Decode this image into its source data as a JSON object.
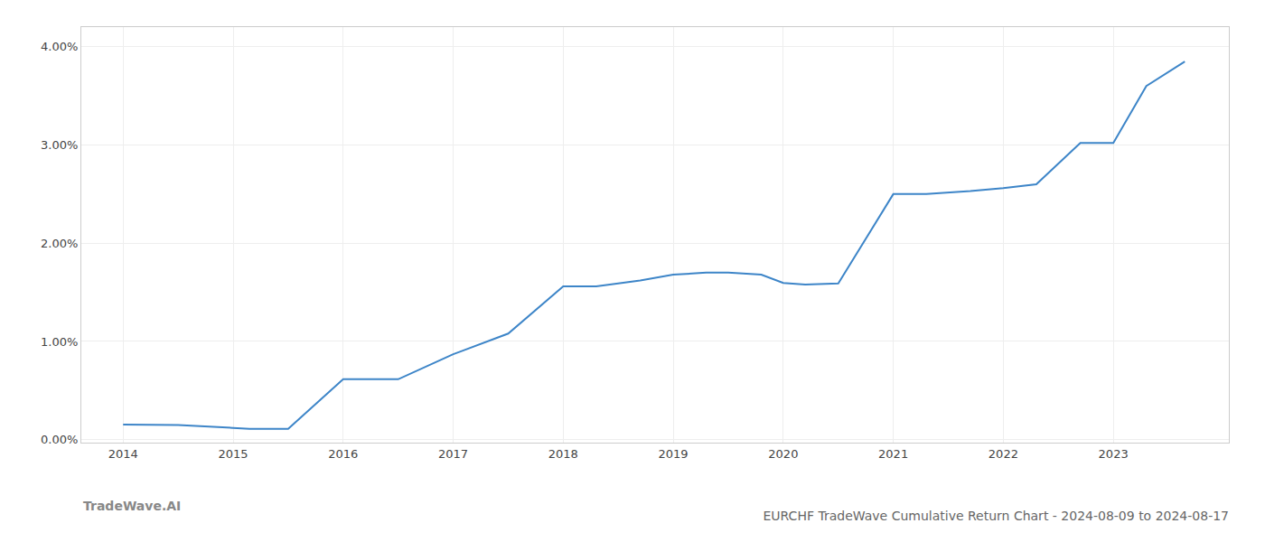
{
  "chart_data": {
    "type": "line",
    "title": "EURCHF TradeWave Cumulative Return Chart - 2024-08-09 to 2024-08-17",
    "annotations": [
      "TradeWave.AI"
    ],
    "x": [
      2014.0,
      2014.5,
      2015.0,
      2015.15,
      2015.5,
      2016.0,
      2016.5,
      2017.0,
      2017.5,
      2018.0,
      2018.3,
      2018.7,
      2019.0,
      2019.3,
      2019.5,
      2019.8,
      2020.0,
      2020.2,
      2020.5,
      2021.0,
      2021.3,
      2021.7,
      2022.0,
      2022.3,
      2022.7,
      2023.0,
      2023.3,
      2023.65
    ],
    "values": [
      0.00155,
      0.0015,
      0.0012,
      0.0011,
      0.0011,
      0.00615,
      0.00615,
      0.0087,
      0.0108,
      0.0156,
      0.0156,
      0.0162,
      0.0168,
      0.017,
      0.017,
      0.0168,
      0.01595,
      0.0158,
      0.0159,
      0.025,
      0.025,
      0.0253,
      0.0256,
      0.026,
      0.0302,
      0.0302,
      0.036,
      0.0385
    ],
    "color": "#3d85c8",
    "xlim": [
      2013.62,
      2024.05
    ],
    "ylim": [
      -0.0003,
      0.042
    ],
    "xticks": [
      2014,
      2015,
      2016,
      2017,
      2018,
      2019,
      2020,
      2021,
      2022,
      2023
    ],
    "yticks": [
      {
        "value": 0.0,
        "label": "0.00%"
      },
      {
        "value": 0.01,
        "label": "1.00%"
      },
      {
        "value": 0.02,
        "label": "2.00%"
      },
      {
        "value": 0.03,
        "label": "3.00%"
      },
      {
        "value": 0.04,
        "label": "4.00%"
      }
    ],
    "grid": true
  }
}
